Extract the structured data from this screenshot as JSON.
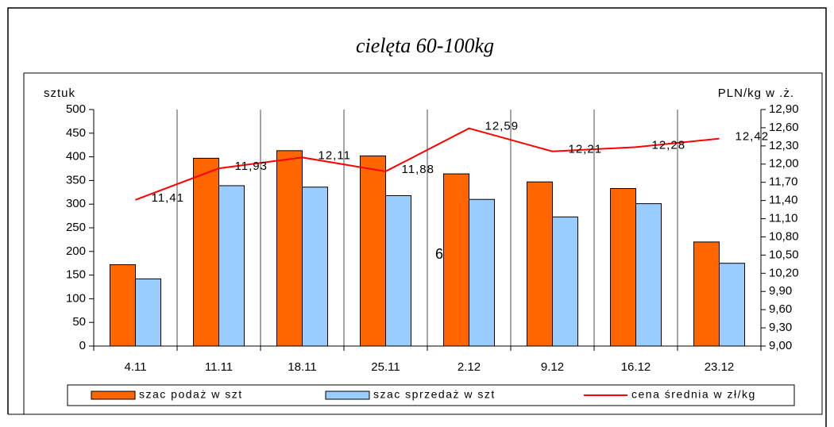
{
  "chart_data": {
    "type": "bar-line",
    "title": "cielęta 60-100kg",
    "y_label": "sztuk",
    "y2_label": "PLN/kg w .ż.",
    "annotation": "6",
    "categories": [
      "4.11",
      "11.11",
      "18.11",
      "25.11",
      "2.12",
      "9.12",
      "16.12",
      "23.12"
    ],
    "series": [
      {
        "name": "szac podaż w szt",
        "type": "bar",
        "color": "#ff6600",
        "values": [
          172,
          397,
          413,
          402,
          364,
          347,
          333,
          220
        ]
      },
      {
        "name": "szac sprzedaż w szt",
        "type": "bar",
        "color": "#99ccff",
        "values": [
          142,
          339,
          336,
          318,
          310,
          273,
          301,
          175
        ]
      },
      {
        "name": "cena średnia w zł/kg",
        "type": "line",
        "axis": "y2",
        "color": "#ff0000",
        "values": [
          11.41,
          11.93,
          12.11,
          11.88,
          12.59,
          12.21,
          12.28,
          12.42
        ],
        "value_labels": [
          "11,41",
          "11,93",
          "12,11",
          "11,88",
          "12,59",
          "12,21",
          "12,28",
          "12,42"
        ]
      }
    ],
    "ylim": [
      0,
      500
    ],
    "yticks": [
      0,
      50,
      100,
      150,
      200,
      250,
      300,
      350,
      400,
      450,
      500
    ],
    "y2lim": [
      9,
      12.9
    ],
    "y2ticks": [
      {
        "value": 9,
        "label": "9,00"
      },
      {
        "value": 9.3,
        "label": "9,30"
      },
      {
        "value": 9.6,
        "label": "9,60"
      },
      {
        "value": 9.9,
        "label": "9,90"
      },
      {
        "value": 10.2,
        "label": "10,20"
      },
      {
        "value": 10.5,
        "label": "10,50"
      },
      {
        "value": 10.8,
        "label": "10,80"
      },
      {
        "value": 11.1,
        "label": "11,10"
      },
      {
        "value": 11.4,
        "label": "11,40"
      },
      {
        "value": 11.7,
        "label": "11,70"
      },
      {
        "value": 12,
        "label": "12,00"
      },
      {
        "value": 12.3,
        "label": "12,30"
      },
      {
        "value": 12.6,
        "label": "12,60"
      },
      {
        "value": 12.9,
        "label": "12,90"
      }
    ],
    "legend": "bottom"
  }
}
